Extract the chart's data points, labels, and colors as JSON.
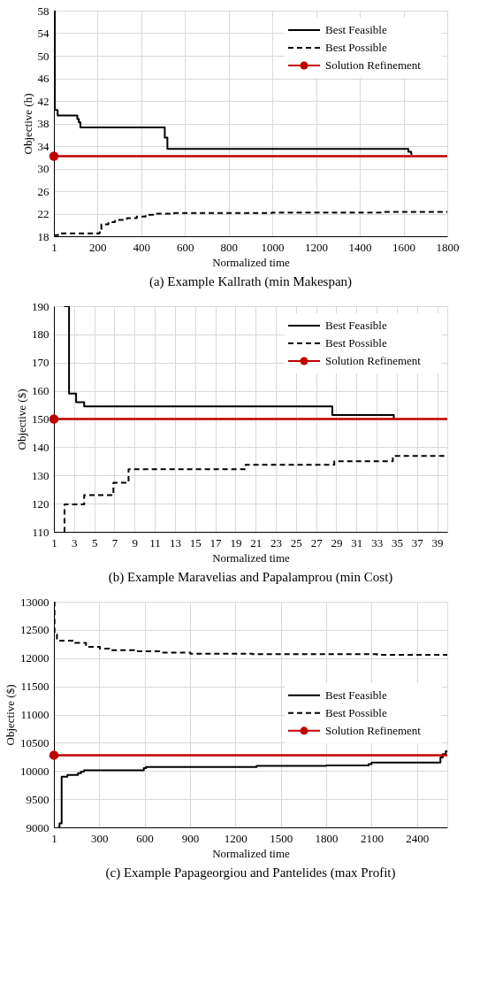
{
  "chart_data": [
    {
      "type": "step",
      "title": "(a) Example Kallrath (min Makespan)",
      "xlabel": "Normalized time",
      "ylabel": "Objective (h)",
      "xlim": [
        1,
        1800
      ],
      "ylim": [
        18,
        58
      ],
      "xticks": [
        1,
        200,
        400,
        600,
        800,
        1000,
        1200,
        1400,
        1600,
        1800
      ],
      "yticks": [
        18,
        22,
        26,
        30,
        34,
        38,
        42,
        46,
        50,
        54,
        58
      ],
      "grid": true,
      "legend": "top right",
      "series": [
        {
          "name": "Best Feasible",
          "color": "#000000",
          "line_style": "solid",
          "x": [
            1,
            5,
            18,
            108,
            115,
            122,
            508,
            520,
            1622,
            1635,
            1640
          ],
          "values": [
            58,
            40.4,
            39.4,
            38.8,
            38.2,
            37.3,
            35.5,
            33.5,
            33.0,
            32.6,
            32.6
          ]
        },
        {
          "name": "Best Possible",
          "color": "#000000",
          "line_style": "dashed",
          "x": [
            1,
            20,
            210,
            218,
            250,
            280,
            335,
            380,
            420,
            465,
            550,
            1000,
            1500,
            1800
          ],
          "values": [
            18.2,
            18.5,
            18.7,
            20.1,
            20.5,
            20.9,
            21.2,
            21.5,
            21.8,
            22.0,
            22.1,
            22.2,
            22.3,
            22.3
          ]
        },
        {
          "name": "Solution Refinement",
          "color": "#c00000",
          "type": "scatter",
          "x": [
            1
          ],
          "values": [
            32.2
          ]
        }
      ],
      "ref_lines": [
        {
          "axis": "y",
          "value": 32.2,
          "color": "#c00000"
        }
      ]
    },
    {
      "type": "step",
      "title": "(b) Example Maravelias and Papalamprou (min Cost)",
      "xlabel": "Normalized time",
      "ylabel": "Objective ($)",
      "xlim": [
        1,
        40
      ],
      "ylim": [
        110,
        190
      ],
      "xticks": [
        1,
        3,
        5,
        7,
        9,
        11,
        13,
        15,
        17,
        19,
        21,
        23,
        25,
        27,
        29,
        31,
        33,
        35,
        37,
        39
      ],
      "yticks": [
        110,
        120,
        130,
        140,
        150,
        160,
        170,
        180,
        190
      ],
      "grid": true,
      "legend": "top right",
      "series": [
        {
          "name": "Best Feasible",
          "color": "#000000",
          "line_style": "solid",
          "x": [
            2,
            2.5,
            3.2,
            4,
            28.6,
            34.7,
            34.8
          ],
          "values": [
            190,
            159,
            156,
            154.5,
            151.4,
            150.3,
            150.3
          ]
        },
        {
          "name": "Best Possible",
          "color": "#000000",
          "line_style": "dashed",
          "x": [
            2,
            2.05,
            4,
            6.9,
            8.4,
            20,
            28.8,
            34.6,
            40
          ],
          "values": [
            110,
            119.7,
            123,
            127.4,
            132.2,
            133.8,
            135,
            136.9,
            136.9
          ]
        },
        {
          "name": "Solution Refinement",
          "color": "#c00000",
          "type": "scatter",
          "x": [
            1
          ],
          "values": [
            150
          ]
        }
      ],
      "ref_lines": [
        {
          "axis": "y",
          "value": 150,
          "color": "#c00000"
        }
      ]
    },
    {
      "type": "step",
      "title": "(c) Example Papageorgiou and Pantelides (max Profit)",
      "xlabel": "Normalized time",
      "ylabel": "Objective ($)",
      "xlim": [
        1,
        2600
      ],
      "ylim": [
        9000,
        13000
      ],
      "xticks": [
        1,
        300,
        600,
        900,
        1200,
        1500,
        1800,
        2100,
        2400
      ],
      "yticks": [
        9000,
        9500,
        10000,
        10500,
        11000,
        11500,
        12000,
        12500,
        13000
      ],
      "grid": true,
      "legend": "right",
      "series": [
        {
          "name": "Best Feasible",
          "color": "#000000",
          "line_style": "solid",
          "x": [
            28,
            38,
            52,
            90,
            160,
            180,
            200,
            595,
            610,
            1340,
            1800,
            2080,
            2100,
            2555,
            2570,
            2590,
            2600
          ],
          "values": [
            9000,
            9070,
            9900,
            9930,
            9960,
            9990,
            10010,
            10050,
            10070,
            10090,
            10100,
            10120,
            10150,
            10240,
            10300,
            10350,
            10350
          ]
        },
        {
          "name": "Best Possible",
          "color": "#000000",
          "line_style": "dashed",
          "x": [
            1,
            5,
            21,
            140,
            213,
            305,
            367,
            532,
            697,
            902,
            1313,
            2137,
            2600
          ],
          "values": [
            13000,
            12420,
            12310,
            12270,
            12200,
            12170,
            12140,
            12120,
            12100,
            12080,
            12070,
            12060,
            12060
          ]
        },
        {
          "name": "Solution Refinement",
          "color": "#c00000",
          "type": "scatter",
          "x": [
            1
          ],
          "values": [
            10280
          ]
        }
      ],
      "ref_lines": [
        {
          "axis": "y",
          "value": 10280,
          "color": "#c00000"
        }
      ]
    }
  ]
}
